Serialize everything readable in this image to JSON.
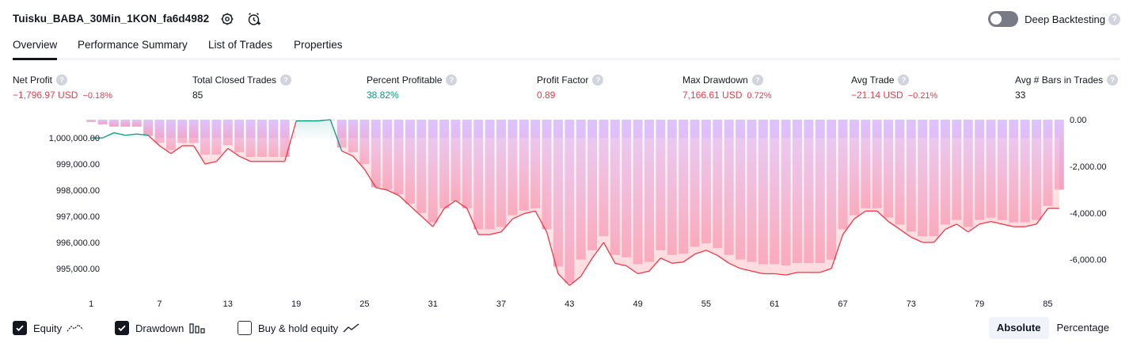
{
  "header": {
    "strategy_name": "Tuisku_BABA_30Min_1KON_fa6d4982",
    "settings_icon": "gear-icon",
    "alert_icon": "add-alert-icon",
    "deep_backtesting_label": "Deep Backtesting",
    "deep_backtesting_on": false,
    "help_glyph": "?"
  },
  "tabs": [
    {
      "label": "Overview",
      "active": true
    },
    {
      "label": "Performance Summary",
      "active": false
    },
    {
      "label": "List of Trades",
      "active": false
    },
    {
      "label": "Properties",
      "active": false
    }
  ],
  "metrics": [
    {
      "label": "Net Profit",
      "value": "−1,796.97 USD",
      "pct": "−0.18%",
      "tone": "neg"
    },
    {
      "label": "Total Closed Trades",
      "value": "85",
      "pct": "",
      "tone": "neu"
    },
    {
      "label": "Percent Profitable",
      "value": "38.82%",
      "pct": "",
      "tone": "pos"
    },
    {
      "label": "Profit Factor",
      "value": "0.89",
      "pct": "",
      "tone": "neg"
    },
    {
      "label": "Max Drawdown",
      "value": "7,166.61 USD",
      "pct": "0.72%",
      "tone": "neg"
    },
    {
      "label": "Avg Trade",
      "value": "−21.14 USD",
      "pct": "−0.21%",
      "tone": "neg"
    },
    {
      "label": "Avg # Bars in Trades",
      "value": "33",
      "pct": "",
      "tone": "neu"
    }
  ],
  "legend": {
    "equity": {
      "label": "Equity",
      "checked": true
    },
    "drawdown": {
      "label": "Drawdown",
      "checked": true
    },
    "buy_hold": {
      "label": "Buy & hold equity",
      "checked": false
    }
  },
  "view_mode": {
    "absolute": "Absolute",
    "percentage": "Percentage",
    "selected": "absolute"
  },
  "chart_data": {
    "type": "line",
    "title": "",
    "x_ticks": [
      "1",
      "7",
      "13",
      "19",
      "25",
      "31",
      "37",
      "43",
      "49",
      "55",
      "61",
      "67",
      "73",
      "79",
      "85"
    ],
    "y_left_ticks": [
      "1,000,000.00",
      "999,000.00",
      "998,000.00",
      "997,000.00",
      "996,000.00",
      "995,000.00"
    ],
    "y_right_ticks": [
      "0.00",
      "-2,000.00",
      "-4,000.00",
      "-6,000.00"
    ],
    "y_left_range": [
      994300,
      1000700
    ],
    "y_right_range": [
      -7166.61,
      0
    ],
    "colors": {
      "equity_up": "#089981",
      "equity_down": "#f23645",
      "drawdown_bar": "#d8b8ff",
      "drawdown_bar_bottom": "#f48fb1",
      "ticks": "#131722"
    },
    "series": [
      {
        "name": "Equity",
        "x": [
          1,
          2,
          3,
          4,
          5,
          6,
          7,
          8,
          9,
          10,
          11,
          12,
          13,
          14,
          15,
          16,
          17,
          18,
          19,
          20,
          21,
          22,
          23,
          24,
          25,
          26,
          27,
          28,
          29,
          30,
          31,
          32,
          33,
          34,
          35,
          36,
          37,
          38,
          39,
          40,
          41,
          42,
          43,
          44,
          45,
          46,
          47,
          48,
          49,
          50,
          51,
          52,
          53,
          54,
          55,
          56,
          57,
          58,
          59,
          60,
          61,
          62,
          63,
          64,
          65,
          66,
          67,
          68,
          69,
          70,
          71,
          72,
          73,
          74,
          75,
          76,
          77,
          78,
          79,
          80,
          81,
          82,
          83,
          84,
          85,
          86
        ],
        "y": [
          1000000,
          1000000,
          1000200,
          1000100,
          1000150,
          1000100,
          999700,
          999400,
          999700,
          999700,
          999000,
          999100,
          999600,
          999300,
          999100,
          999100,
          999100,
          999100,
          1000650,
          1000650,
          1000650,
          1000700,
          999500,
          999300,
          998800,
          998100,
          998000,
          997800,
          997400,
          997000,
          996600,
          997300,
          997600,
          997300,
          996300,
          996300,
          996400,
          996900,
          997100,
          997200,
          996400,
          994800,
          994350,
          994700,
          995400,
          996000,
          995200,
          995100,
          994800,
          994900,
          995400,
          995200,
          995250,
          995550,
          995700,
          995500,
          995200,
          995000,
          994900,
          994800,
          994800,
          994750,
          994850,
          994850,
          994850,
          995000,
          996300,
          996900,
          997200,
          997200,
          996800,
          996500,
          996200,
          996000,
          996000,
          996500,
          996700,
          996400,
          996700,
          996800,
          996700,
          996600,
          996600,
          996700,
          997300,
          997300
        ]
      },
      {
        "name": "Drawdown",
        "x": [
          1,
          2,
          3,
          4,
          5,
          6,
          7,
          8,
          9,
          10,
          11,
          12,
          13,
          14,
          15,
          16,
          17,
          18,
          19,
          20,
          21,
          22,
          23,
          24,
          25,
          26,
          27,
          28,
          29,
          30,
          31,
          32,
          33,
          34,
          35,
          36,
          37,
          38,
          39,
          40,
          41,
          42,
          43,
          44,
          45,
          46,
          47,
          48,
          49,
          50,
          51,
          52,
          53,
          54,
          55,
          56,
          57,
          58,
          59,
          60,
          61,
          62,
          63,
          64,
          65,
          66,
          67,
          68,
          69,
          70,
          71,
          72,
          73,
          74,
          75,
          76,
          77,
          78,
          79,
          80,
          81,
          82,
          83,
          84,
          85,
          86
        ],
        "y": [
          -100,
          -200,
          -300,
          -300,
          -300,
          -700,
          -1000,
          -1300,
          -1000,
          -1000,
          -1500,
          -1500,
          -1100,
          -1400,
          -1600,
          -1600,
          -1600,
          -1600,
          0,
          0,
          0,
          0,
          -1200,
          -1400,
          -1900,
          -2900,
          -3000,
          -3200,
          -3600,
          -4000,
          -4400,
          -3800,
          -3500,
          -3800,
          -4700,
          -4700,
          -4600,
          -4100,
          -3900,
          -3800,
          -4700,
          -6300,
          -7000,
          -6000,
          -5600,
          -5000,
          -5800,
          -5900,
          -6200,
          -6100,
          -5600,
          -5800,
          -5750,
          -5450,
          -5300,
          -5500,
          -5800,
          -6000,
          -6100,
          -6200,
          -6200,
          -6250,
          -6150,
          -6150,
          -6150,
          -6000,
          -4700,
          -4100,
          -3800,
          -3800,
          -4200,
          -4500,
          -4800,
          -5000,
          -5000,
          -4500,
          -4300,
          -4600,
          -4300,
          -4200,
          -4300,
          -4400,
          -4400,
          -4300,
          -3700,
          -3000
        ]
      }
    ]
  }
}
